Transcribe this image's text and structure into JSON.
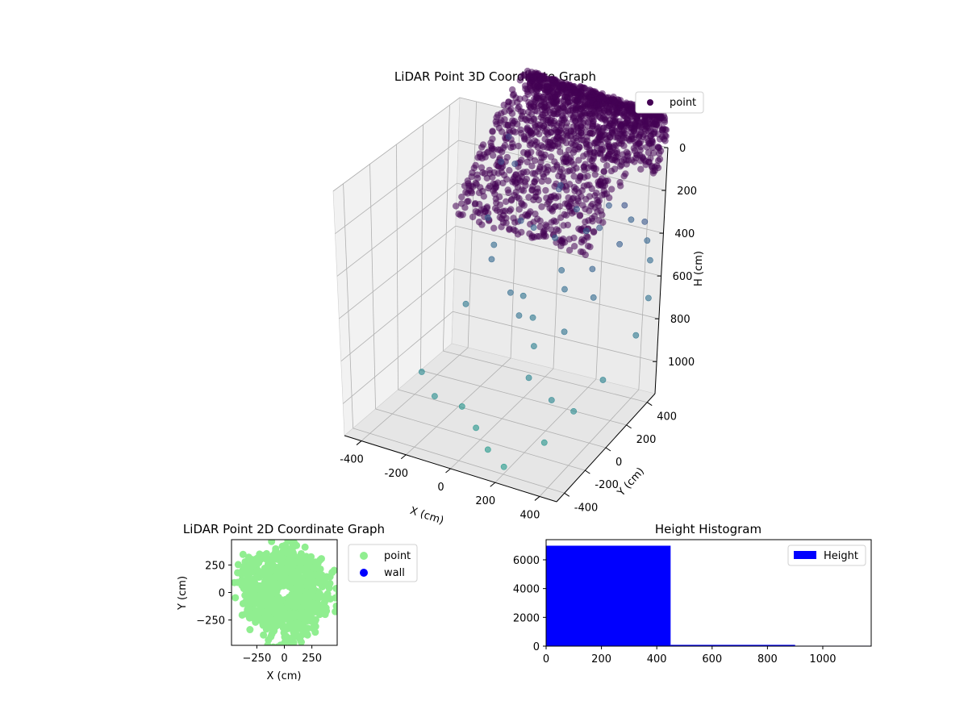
{
  "chart_data": [
    {
      "type": "scatter3d",
      "title": "LiDAR Point 3D Coordinate Graph",
      "xlabel": "X (cm)",
      "ylabel": "Y (cm)",
      "zlabel": "H (cm)",
      "x_ticks": [
        "-400",
        "-200",
        "0",
        "200",
        "400"
      ],
      "y_ticks": [
        "-400",
        "-200",
        "0",
        "200",
        "400"
      ],
      "z_ticks": [
        "0",
        "200",
        "400",
        "600",
        "800",
        "1000"
      ],
      "xlim": [
        -480,
        480
      ],
      "ylim": [
        -480,
        480
      ],
      "zlim": [
        1150,
        0
      ],
      "z_inverted": true,
      "grid": true,
      "legend": {
        "entries": [
          "point"
        ],
        "placement": "top-right"
      },
      "colormap": "viridis",
      "dense_shell": {
        "description_points": "arched shell of ~7000 points",
        "x_range": [
          -400,
          250
        ],
        "y_range": [
          -400,
          350
        ],
        "h_range": [
          50,
          450
        ]
      },
      "sparse_points": [
        [
          -430,
          300,
          420
        ],
        [
          -400,
          200,
          460
        ],
        [
          -380,
          350,
          520
        ],
        [
          -350,
          100,
          600
        ],
        [
          -300,
          150,
          700
        ],
        [
          -280,
          -50,
          820
        ],
        [
          -250,
          0,
          680
        ],
        [
          -200,
          60,
          560
        ],
        [
          -180,
          220,
          640
        ],
        [
          -150,
          300,
          520
        ],
        [
          -120,
          180,
          480
        ],
        [
          -100,
          -100,
          720
        ],
        [
          -80,
          40,
          780
        ],
        [
          -60,
          150,
          620
        ],
        [
          -40,
          260,
          560
        ],
        [
          -20,
          -150,
          760
        ],
        [
          0,
          0,
          820
        ],
        [
          20,
          120,
          700
        ],
        [
          40,
          220,
          600
        ],
        [
          60,
          -60,
          880
        ],
        [
          80,
          40,
          720
        ],
        [
          100,
          180,
          560
        ],
        [
          120,
          -200,
          920
        ],
        [
          140,
          300,
          520
        ],
        [
          160,
          60,
          640
        ],
        [
          180,
          -120,
          780
        ],
        [
          200,
          200,
          600
        ],
        [
          220,
          0,
          700
        ],
        [
          240,
          320,
          560
        ],
        [
          260,
          -260,
          940
        ],
        [
          -300,
          -300,
          960
        ],
        [
          -200,
          -350,
          1000
        ],
        [
          -100,
          -250,
          1050
        ],
        [
          0,
          -300,
          1080
        ],
        [
          100,
          -380,
          1100
        ],
        [
          200,
          -420,
          1120
        ],
        [
          300,
          -300,
          1060
        ],
        [
          350,
          -200,
          980
        ],
        [
          400,
          -100,
          900
        ],
        [
          420,
          100,
          820
        ],
        [
          380,
          250,
          760
        ],
        [
          300,
          380,
          700
        ],
        [
          250,
          420,
          660
        ],
        [
          150,
          440,
          620
        ],
        [
          50,
          400,
          580
        ]
      ]
    },
    {
      "type": "scatter",
      "title": "LiDAR Point 2D Coordinate Graph",
      "xlabel": "X (cm)",
      "ylabel": "Y (cm)",
      "x_ticks": [
        "−250",
        "0",
        "250"
      ],
      "y_ticks": [
        "250",
        "0",
        "−250"
      ],
      "xlim": [
        -480,
        480
      ],
      "ylim": [
        -480,
        480
      ],
      "series": [
        {
          "name": "point",
          "color": "#90ee90"
        },
        {
          "name": "wall",
          "color": "#0000ff"
        }
      ],
      "legend": {
        "placement": "right-outside"
      }
    },
    {
      "type": "bar",
      "title": "Height Histogram",
      "x_ticks": [
        "0",
        "200",
        "400",
        "600",
        "800",
        "1000"
      ],
      "y_ticks": [
        "0",
        "2000",
        "4000",
        "6000"
      ],
      "xlim": [
        0,
        1175
      ],
      "ylim": [
        0,
        7400
      ],
      "bins": [
        {
          "start": 0,
          "end": 450,
          "count": 6980
        },
        {
          "start": 450,
          "end": 900,
          "count": 90
        },
        {
          "start": 900,
          "end": 1175,
          "count": 30
        }
      ],
      "series": [
        {
          "name": "Height",
          "color": "#0000ff"
        }
      ],
      "legend": {
        "placement": "top-right"
      }
    }
  ]
}
